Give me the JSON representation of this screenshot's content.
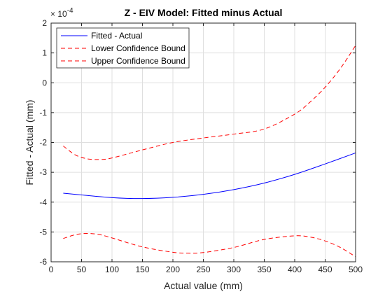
{
  "chart_data": {
    "type": "line",
    "title": "Z - EIV Model: Fitted minus Actual",
    "xlabel": "Actual value (mm)",
    "ylabel": "Fitted - Actual (mm)",
    "y_exponent_label": "× 10",
    "y_exponent_power": "-4",
    "xlim": [
      0,
      500
    ],
    "ylim": [
      -6,
      2
    ],
    "xticks": [
      0,
      50,
      100,
      150,
      200,
      250,
      300,
      350,
      400,
      450,
      500
    ],
    "yticks": [
      -6,
      -5,
      -4,
      -3,
      -2,
      -1,
      0,
      1,
      2
    ],
    "grid": true,
    "legend_position": "top-left",
    "series": [
      {
        "name": "Fitted - Actual",
        "color": "#0000ff",
        "style": "solid",
        "x": [
          20,
          50,
          100,
          150,
          200,
          250,
          300,
          350,
          400,
          450,
          500
        ],
        "y": [
          -3.7,
          -3.76,
          -3.85,
          -3.88,
          -3.84,
          -3.74,
          -3.58,
          -3.36,
          -3.07,
          -2.72,
          -2.35
        ]
      },
      {
        "name": "Lower Confidence Bound",
        "color": "#ff0000",
        "style": "dashed",
        "x": [
          20,
          40,
          60,
          80,
          100,
          150,
          200,
          225,
          250,
          300,
          350,
          400,
          425,
          450,
          475,
          500
        ],
        "y": [
          -5.22,
          -5.09,
          -5.05,
          -5.09,
          -5.2,
          -5.5,
          -5.68,
          -5.71,
          -5.69,
          -5.52,
          -5.25,
          -5.13,
          -5.17,
          -5.3,
          -5.52,
          -5.83
        ]
      },
      {
        "name": "Upper Confidence Bound",
        "color": "#ff0000",
        "style": "dashed",
        "x": [
          20,
          40,
          60,
          80,
          100,
          150,
          200,
          250,
          300,
          350,
          400,
          425,
          450,
          475,
          500
        ],
        "y": [
          -2.12,
          -2.42,
          -2.55,
          -2.57,
          -2.52,
          -2.25,
          -2.0,
          -1.85,
          -1.72,
          -1.55,
          -1.05,
          -0.65,
          -0.15,
          0.48,
          1.25
        ]
      }
    ]
  }
}
